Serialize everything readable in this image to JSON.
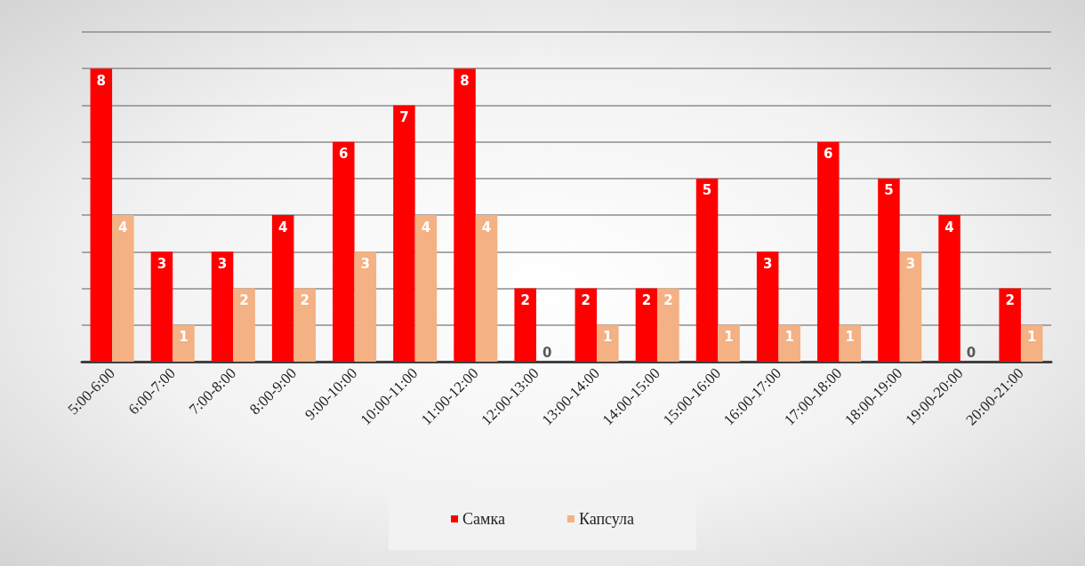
{
  "chart_data": {
    "type": "bar",
    "categories": [
      "5:00-6:00",
      "6:00-7:00",
      "7:00-8:00",
      "8:00-9:00",
      "9:00-10:00",
      "10:00-11:00",
      "11:00-12:00",
      "12:00-13:00",
      "13:00-14:00",
      "14:00-15:00",
      "15:00-16:00",
      "16:00-17:00",
      "17:00-18:00",
      "18:00-19:00",
      "19:00-20:00",
      "20:00-21:00"
    ],
    "series": [
      {
        "name": "Самка",
        "color": "#ff0000",
        "values": [
          8,
          3,
          3,
          4,
          6,
          7,
          8,
          2,
          2,
          2,
          5,
          3,
          6,
          5,
          4,
          2
        ]
      },
      {
        "name": "Капсула",
        "color": "#f4b183",
        "values": [
          4,
          1,
          2,
          2,
          3,
          4,
          4,
          0,
          1,
          2,
          1,
          1,
          1,
          3,
          0,
          1
        ]
      }
    ],
    "ylim": [
      0,
      9
    ],
    "yticks": [
      0,
      1,
      2,
      3,
      4,
      5,
      6,
      7,
      8,
      9
    ],
    "grid": "y",
    "tick_labels": "x",
    "data_labels": true,
    "legend": "bottom"
  }
}
